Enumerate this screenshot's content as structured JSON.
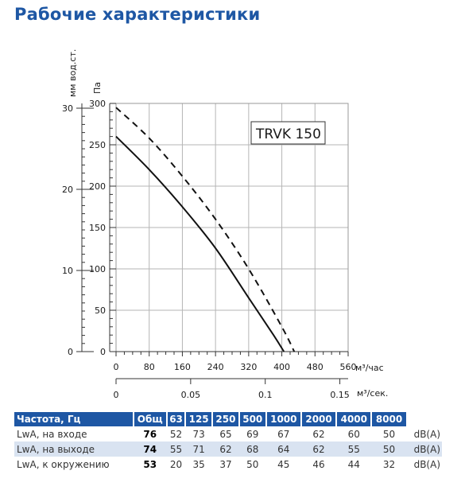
{
  "title": "Рабочие характеристики",
  "chart_data": {
    "type": "line",
    "model_label": "TRVK 150",
    "y_primary": {
      "label": "Па",
      "ticks": [
        0,
        50,
        100,
        150,
        200,
        250,
        300
      ],
      "range": [
        0,
        300
      ]
    },
    "y_secondary": {
      "label": "мм вод.ст.",
      "ticks": [
        0,
        10,
        20,
        30
      ]
    },
    "x_primary": {
      "label": "м³/час",
      "ticks": [
        0,
        80,
        160,
        240,
        320,
        400,
        480,
        560
      ],
      "range": [
        0,
        560
      ]
    },
    "x_secondary": {
      "label": "м³/сек.",
      "ticks": [
        "0",
        "0.05",
        "0.1",
        "0.15"
      ],
      "values": [
        0,
        0.05,
        0.1,
        0.15
      ]
    },
    "grid": true,
    "series": [
      {
        "style": "solid",
        "x": [
          0,
          80,
          160,
          240,
          320,
          380,
          405
        ],
        "y": [
          260,
          220,
          175,
          125,
          65,
          20,
          0
        ]
      },
      {
        "style": "dashed",
        "x": [
          0,
          80,
          160,
          240,
          320,
          400,
          430
        ],
        "y": [
          295,
          258,
          212,
          160,
          100,
          30,
          0
        ]
      }
    ]
  },
  "table": {
    "headers": [
      "Частота, Гц",
      "Общ",
      "63",
      "125",
      "250",
      "500",
      "1000",
      "2000",
      "4000",
      "8000"
    ],
    "rows": [
      {
        "label": "LwA, на входе",
        "total": "76",
        "values": [
          "52",
          "73",
          "65",
          "69",
          "67",
          "62",
          "60",
          "50"
        ],
        "unit": "dB(A)"
      },
      {
        "label": "LwA, на выходе",
        "total": "74",
        "values": [
          "55",
          "71",
          "62",
          "68",
          "64",
          "62",
          "55",
          "50"
        ],
        "unit": "dB(A)"
      },
      {
        "label": "LwA, к окружению",
        "total": "53",
        "values": [
          "20",
          "35",
          "37",
          "50",
          "45",
          "46",
          "44",
          "32"
        ],
        "unit": "dB(A)"
      }
    ]
  }
}
